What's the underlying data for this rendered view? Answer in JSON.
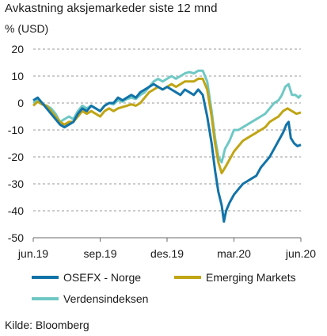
{
  "title": "Avkastning aksjemarkeder siste 12 mnd",
  "unit": "% (USD)",
  "source": "Kilde: Bloomberg",
  "chart_data": {
    "type": "line",
    "yticks": [
      20,
      10,
      0,
      -10,
      -20,
      -30,
      -40,
      -50
    ],
    "ylim": [
      -50,
      20
    ],
    "xlim": [
      0,
      12
    ],
    "xticks": [
      {
        "x": 0,
        "label": "jun.19"
      },
      {
        "x": 3,
        "label": "sep.19"
      },
      {
        "x": 6,
        "label": "des.19"
      },
      {
        "x": 9,
        "label": "mar.20"
      },
      {
        "x": 12,
        "label": "jun.20"
      }
    ],
    "grid": "horizontal-dashed",
    "legend": "bottom",
    "series": [
      {
        "name": "Verdensindeksen",
        "color": "#6fc8c4",
        "points": [
          [
            0,
            0
          ],
          [
            0.2,
            1
          ],
          [
            0.4,
            -0.5
          ],
          [
            0.6,
            -1
          ],
          [
            0.8,
            -2
          ],
          [
            1.0,
            -4
          ],
          [
            1.2,
            -7
          ],
          [
            1.4,
            -6
          ],
          [
            1.6,
            -5
          ],
          [
            1.8,
            -6
          ],
          [
            2.0,
            -3
          ],
          [
            2.2,
            -1
          ],
          [
            2.4,
            -2
          ],
          [
            2.6,
            -1
          ],
          [
            2.8,
            -2
          ],
          [
            3.0,
            -3
          ],
          [
            3.2,
            -1
          ],
          [
            3.4,
            0
          ],
          [
            3.6,
            -0.5
          ],
          [
            3.8,
            1
          ],
          [
            4.0,
            0.5
          ],
          [
            4.2,
            1.5
          ],
          [
            4.4,
            2
          ],
          [
            4.6,
            1.5
          ],
          [
            4.8,
            3
          ],
          [
            5.0,
            4
          ],
          [
            5.2,
            6
          ],
          [
            5.4,
            8
          ],
          [
            5.6,
            9
          ],
          [
            5.8,
            8
          ],
          [
            6.0,
            9
          ],
          [
            6.2,
            10
          ],
          [
            6.4,
            9
          ],
          [
            6.6,
            10
          ],
          [
            6.8,
            11
          ],
          [
            7.0,
            11.5
          ],
          [
            7.2,
            11
          ],
          [
            7.4,
            12
          ],
          [
            7.6,
            12
          ],
          [
            7.8,
            8
          ],
          [
            8.0,
            -3
          ],
          [
            8.15,
            -13
          ],
          [
            8.3,
            -20
          ],
          [
            8.45,
            -22
          ],
          [
            8.6,
            -17
          ],
          [
            8.8,
            -14
          ],
          [
            9.0,
            -10
          ],
          [
            9.2,
            -10
          ],
          [
            9.4,
            -9
          ],
          [
            9.6,
            -8
          ],
          [
            9.8,
            -7
          ],
          [
            10.0,
            -6
          ],
          [
            10.2,
            -5
          ],
          [
            10.4,
            -4
          ],
          [
            10.6,
            -2
          ],
          [
            10.8,
            0
          ],
          [
            11.0,
            1
          ],
          [
            11.15,
            3
          ],
          [
            11.3,
            6
          ],
          [
            11.45,
            7
          ],
          [
            11.6,
            3
          ],
          [
            11.75,
            3
          ],
          [
            11.9,
            2
          ],
          [
            12.0,
            3
          ]
        ]
      },
      {
        "name": "Emerging Markets",
        "color": "#c0a515",
        "points": [
          [
            0,
            -1
          ],
          [
            0.2,
            0.5
          ],
          [
            0.4,
            -0.5
          ],
          [
            0.6,
            -1
          ],
          [
            0.8,
            -3
          ],
          [
            1.0,
            -5
          ],
          [
            1.2,
            -7
          ],
          [
            1.4,
            -8
          ],
          [
            1.6,
            -7
          ],
          [
            1.8,
            -7
          ],
          [
            2.0,
            -5
          ],
          [
            2.2,
            -3
          ],
          [
            2.4,
            -4
          ],
          [
            2.6,
            -3
          ],
          [
            2.8,
            -4
          ],
          [
            3.0,
            -5
          ],
          [
            3.2,
            -3
          ],
          [
            3.4,
            -2
          ],
          [
            3.6,
            -3
          ],
          [
            3.8,
            -2
          ],
          [
            4.0,
            -1.5
          ],
          [
            4.2,
            -1
          ],
          [
            4.4,
            -0.5
          ],
          [
            4.6,
            -1
          ],
          [
            4.8,
            0
          ],
          [
            5.0,
            2
          ],
          [
            5.2,
            4
          ],
          [
            5.4,
            5
          ],
          [
            5.6,
            6
          ],
          [
            5.8,
            5
          ],
          [
            6.0,
            6
          ],
          [
            6.2,
            7
          ],
          [
            6.4,
            6
          ],
          [
            6.6,
            7
          ],
          [
            6.8,
            8
          ],
          [
            7.0,
            8
          ],
          [
            7.2,
            8
          ],
          [
            7.4,
            9
          ],
          [
            7.6,
            9
          ],
          [
            7.8,
            5
          ],
          [
            8.0,
            -5
          ],
          [
            8.15,
            -15
          ],
          [
            8.3,
            -22
          ],
          [
            8.45,
            -26
          ],
          [
            8.6,
            -24
          ],
          [
            8.8,
            -21
          ],
          [
            9.0,
            -18
          ],
          [
            9.2,
            -16
          ],
          [
            9.4,
            -14
          ],
          [
            9.6,
            -13
          ],
          [
            9.8,
            -12
          ],
          [
            10.0,
            -11
          ],
          [
            10.2,
            -10
          ],
          [
            10.4,
            -9
          ],
          [
            10.6,
            -7
          ],
          [
            10.8,
            -6
          ],
          [
            11.0,
            -5
          ],
          [
            11.2,
            -3
          ],
          [
            11.4,
            -2
          ],
          [
            11.6,
            -3
          ],
          [
            11.8,
            -4
          ],
          [
            12.0,
            -3.5
          ]
        ]
      },
      {
        "name": "OSEFX - Norge",
        "color": "#1273a8",
        "points": [
          [
            0,
            1
          ],
          [
            0.2,
            2
          ],
          [
            0.4,
            0
          ],
          [
            0.6,
            -2
          ],
          [
            0.8,
            -4
          ],
          [
            1.0,
            -6
          ],
          [
            1.2,
            -8
          ],
          [
            1.4,
            -9
          ],
          [
            1.6,
            -8
          ],
          [
            1.8,
            -7
          ],
          [
            2.0,
            -4
          ],
          [
            2.2,
            -2
          ],
          [
            2.4,
            -3
          ],
          [
            2.6,
            -1
          ],
          [
            2.8,
            -2
          ],
          [
            3.0,
            -3
          ],
          [
            3.2,
            -1
          ],
          [
            3.4,
            0
          ],
          [
            3.6,
            0
          ],
          [
            3.8,
            2
          ],
          [
            4.0,
            1
          ],
          [
            4.2,
            2
          ],
          [
            4.4,
            3
          ],
          [
            4.6,
            2
          ],
          [
            4.8,
            4
          ],
          [
            5.0,
            5
          ],
          [
            5.2,
            6
          ],
          [
            5.4,
            7
          ],
          [
            5.6,
            6
          ],
          [
            5.8,
            5
          ],
          [
            6.0,
            6
          ],
          [
            6.2,
            5
          ],
          [
            6.4,
            4
          ],
          [
            6.6,
            3
          ],
          [
            6.8,
            5
          ],
          [
            7.0,
            4
          ],
          [
            7.2,
            3
          ],
          [
            7.4,
            5
          ],
          [
            7.6,
            3
          ],
          [
            7.8,
            -5
          ],
          [
            8.0,
            -15
          ],
          [
            8.15,
            -25
          ],
          [
            8.3,
            -33
          ],
          [
            8.45,
            -38
          ],
          [
            8.55,
            -44
          ],
          [
            8.65,
            -40
          ],
          [
            8.8,
            -37
          ],
          [
            9.0,
            -34
          ],
          [
            9.2,
            -32
          ],
          [
            9.4,
            -30
          ],
          [
            9.6,
            -29
          ],
          [
            9.8,
            -28
          ],
          [
            10.0,
            -27
          ],
          [
            10.2,
            -24
          ],
          [
            10.4,
            -22
          ],
          [
            10.6,
            -20
          ],
          [
            10.8,
            -17
          ],
          [
            11.0,
            -14
          ],
          [
            11.2,
            -11
          ],
          [
            11.35,
            -8
          ],
          [
            11.45,
            -7
          ],
          [
            11.55,
            -13
          ],
          [
            11.7,
            -15
          ],
          [
            11.85,
            -16
          ],
          [
            12.0,
            -15.5
          ]
        ]
      }
    ]
  },
  "legend": [
    {
      "name": "OSEFX - Norge",
      "color": "#1273a8"
    },
    {
      "name": "Emerging Markets",
      "color": "#c0a515"
    },
    {
      "name": "Verdensindeksen",
      "color": "#6fc8c4"
    }
  ]
}
